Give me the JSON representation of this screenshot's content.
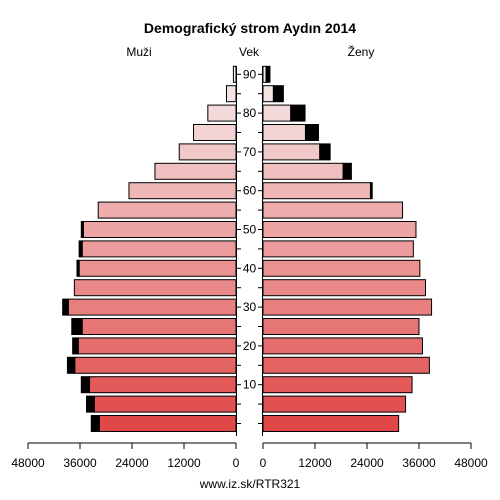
{
  "chart_data": {
    "type": "bar",
    "title": "Demografický strom Aydın 2014",
    "left_label": "Muži",
    "center_label": "Vek",
    "right_label": "Ženy",
    "source": "www.iz.sk/RTR321",
    "age_tick_labels": [
      "10",
      "20",
      "30",
      "40",
      "50",
      "60",
      "70",
      "80",
      "90"
    ],
    "x_ticks_men": [
      "48000",
      "36000",
      "24000",
      "12000",
      "0"
    ],
    "x_ticks_women": [
      "0",
      "12000",
      "24000",
      "36000",
      "48000"
    ],
    "xlim": [
      0,
      48000
    ],
    "age_groups": [
      "0-4",
      "5-9",
      "10-14",
      "15-19",
      "20-24",
      "25-29",
      "30-34",
      "35-39",
      "40-44",
      "45-49",
      "50-54",
      "55-59",
      "60-64",
      "65-69",
      "70-74",
      "75-79",
      "80-84",
      "85-89",
      "90+"
    ],
    "series": [
      {
        "name": "Muži",
        "values": [
          31500,
          32700,
          33800,
          37200,
          36400,
          35500,
          38700,
          37300,
          36200,
          35500,
          35200,
          31800,
          24700,
          18700,
          13100,
          9800,
          6500,
          2200,
          600
        ],
        "excess": [
          1900,
          1800,
          1900,
          1700,
          1300,
          2400,
          1300,
          0,
          500,
          700,
          500,
          0,
          0,
          0,
          0,
          0,
          0,
          0,
          0
        ]
      },
      {
        "name": "Ženy",
        "values": [
          31300,
          32900,
          34400,
          38400,
          36800,
          36000,
          38900,
          37500,
          36200,
          34700,
          35300,
          32200,
          24800,
          18500,
          13100,
          9800,
          6400,
          2400,
          700
        ],
        "excess": [
          0,
          0,
          0,
          0,
          0,
          0,
          0,
          0,
          0,
          0,
          0,
          0,
          400,
          1900,
          2400,
          3000,
          3300,
          2300,
          900
        ]
      }
    ],
    "colors": {
      "bottom": "#e04848",
      "top": "#f6eded",
      "stroke": "#000000",
      "excess": "#000000"
    }
  }
}
